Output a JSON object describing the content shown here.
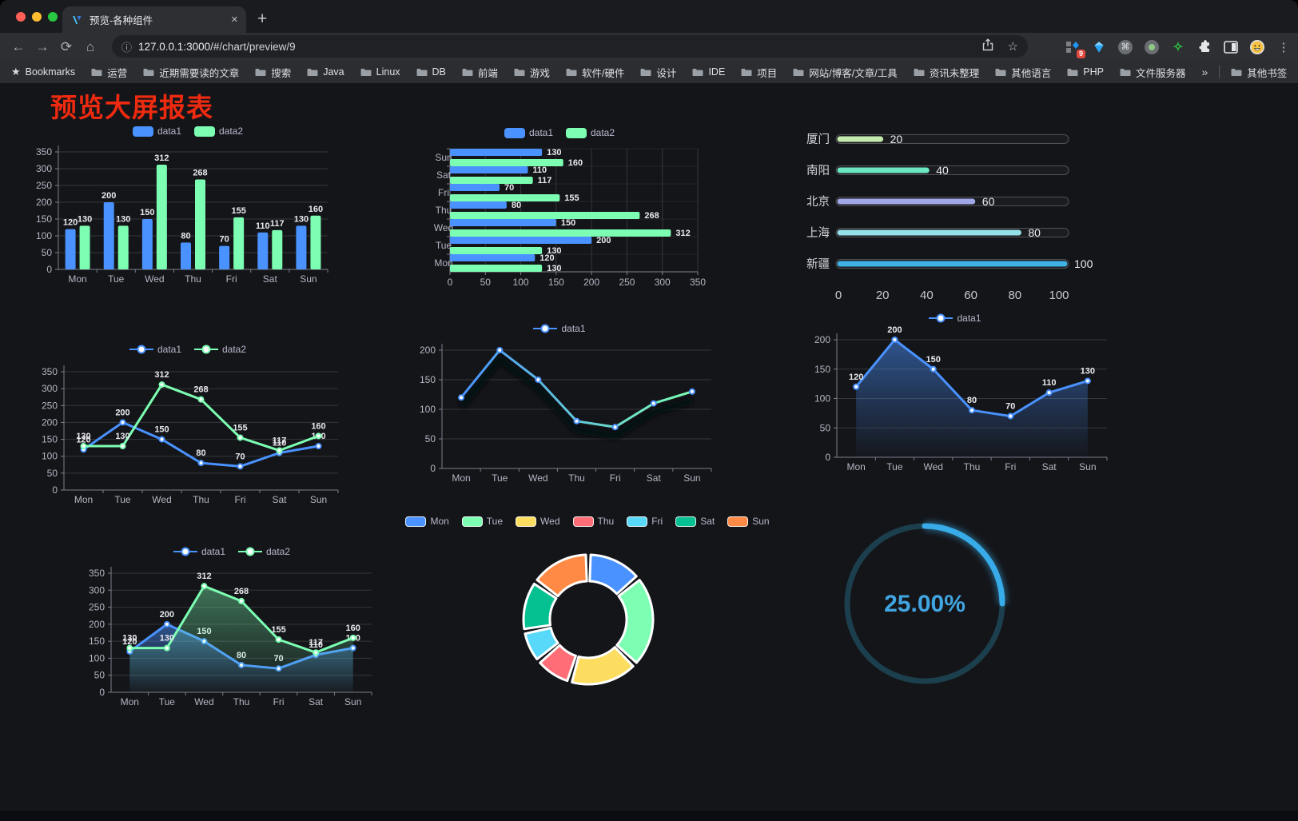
{
  "browser": {
    "tab_title": "预览-各种组件",
    "url_host": "127.0.0.1:3000",
    "url_path": "/#/chart/preview/9",
    "extension_badge": "9",
    "glyphs": {
      "back": "←",
      "forward": "→",
      "reload": "⟳",
      "home": "⌂",
      "info": "ⓘ",
      "star_outline": "☆",
      "bookmarks_star": "★",
      "command": "⌘",
      "green_star": "✧",
      "menu": "⋮",
      "close_tab": "✕",
      "new_tab": "+",
      "overflow": "»"
    },
    "bookmarks_bar": {
      "bookmarks_label": "Bookmarks",
      "folders": [
        "运营",
        "近期需要读的文章",
        "搜索",
        "Java",
        "Linux",
        "DB",
        "前端",
        "游戏",
        "软件/硬件",
        "设计",
        "IDE",
        "项目",
        "网站/博客/文章/工具",
        "资讯未整理",
        "其他语言",
        "PHP",
        "文件服务器"
      ],
      "other_bookmarks": "其他书签"
    }
  },
  "page": {
    "title": "预览大屏报表",
    "title_color": "#ee2a10"
  },
  "chart_data": [
    {
      "id": "grouped-bar",
      "type": "bar",
      "categories": [
        "Mon",
        "Tue",
        "Wed",
        "Thu",
        "Fri",
        "Sat",
        "Sun"
      ],
      "series": [
        {
          "name": "data1",
          "color": "#4992ff",
          "values": [
            120,
            200,
            150,
            80,
            70,
            110,
            130
          ]
        },
        {
          "name": "data2",
          "color": "#7cffb2",
          "values": [
            130,
            130,
            312,
            268,
            155,
            117,
            160
          ]
        }
      ],
      "ylim": [
        0,
        350
      ],
      "ytick_step": 50,
      "legend_position": "top",
      "grid": true,
      "data_labels": true
    },
    {
      "id": "horizontal-bar",
      "type": "bar",
      "orientation": "horizontal",
      "categories": [
        "Mon",
        "Tue",
        "Wed",
        "Thu",
        "Fri",
        "Sat",
        "Sun"
      ],
      "series": [
        {
          "name": "data1",
          "color": "#4992ff",
          "values": [
            120,
            200,
            150,
            80,
            70,
            110,
            130
          ]
        },
        {
          "name": "data2",
          "color": "#7cffb2",
          "values": [
            130,
            130,
            312,
            268,
            155,
            117,
            160
          ]
        }
      ],
      "xlim": [
        0,
        350
      ],
      "xtick_step": 50,
      "legend_position": "top",
      "grid": true,
      "data_labels": true
    },
    {
      "id": "progress-bars",
      "type": "bar",
      "orientation": "horizontal",
      "style": "progress",
      "categories": [
        "厦门",
        "南阳",
        "北京",
        "上海",
        "新疆"
      ],
      "values": [
        20,
        40,
        60,
        80,
        100
      ],
      "colors": [
        "#c4ebad",
        "#6be6c1",
        "#a0a7e6",
        "#96dee8",
        "#3fb1e3"
      ],
      "xlim": [
        0,
        100
      ],
      "xticks": [
        0,
        20,
        40,
        60,
        80,
        100
      ],
      "data_labels": true
    },
    {
      "id": "dual-line",
      "type": "line",
      "categories": [
        "Mon",
        "Tue",
        "Wed",
        "Thu",
        "Fri",
        "Sat",
        "Sun"
      ],
      "series": [
        {
          "name": "data1",
          "color": "#4992ff",
          "values": [
            120,
            200,
            150,
            80,
            70,
            110,
            130
          ]
        },
        {
          "name": "data2",
          "color": "#7cffb2",
          "values": [
            130,
            130,
            312,
            268,
            155,
            117,
            160
          ]
        }
      ],
      "ylim": [
        0,
        350
      ],
      "ytick_step": 50,
      "legend_position": "top",
      "grid": true,
      "data_labels": true
    },
    {
      "id": "gradient-line",
      "type": "line",
      "style": "gradient-shadow",
      "categories": [
        "Mon",
        "Tue",
        "Wed",
        "Thu",
        "Fri",
        "Sat",
        "Sun"
      ],
      "series": [
        {
          "name": "data1",
          "color_start": "#4992ff",
          "color_end": "#7cffb2",
          "values": [
            120,
            200,
            150,
            80,
            70,
            110,
            130
          ]
        }
      ],
      "ylim": [
        0,
        200
      ],
      "ytick_step": 50,
      "legend_position": "top",
      "grid": true,
      "data_labels": false
    },
    {
      "id": "area-line",
      "type": "area",
      "categories": [
        "Mon",
        "Tue",
        "Wed",
        "Thu",
        "Fri",
        "Sat",
        "Sun"
      ],
      "series": [
        {
          "name": "data1",
          "color": "#4992ff",
          "values": [
            120,
            200,
            150,
            80,
            70,
            110,
            130
          ]
        }
      ],
      "ylim": [
        0,
        200
      ],
      "ytick_step": 50,
      "legend_position": "top",
      "grid": true,
      "data_labels": true
    },
    {
      "id": "dual-area",
      "type": "area",
      "categories": [
        "Mon",
        "Tue",
        "Wed",
        "Thu",
        "Fri",
        "Sat",
        "Sun"
      ],
      "series": [
        {
          "name": "data1",
          "color": "#4992ff",
          "values": [
            120,
            200,
            150,
            80,
            70,
            110,
            130
          ]
        },
        {
          "name": "data2",
          "color": "#7cffb2",
          "values": [
            130,
            130,
            312,
            268,
            155,
            117,
            160
          ]
        }
      ],
      "ylim": [
        0,
        350
      ],
      "ytick_step": 50,
      "legend_position": "top",
      "grid": true,
      "data_labels": true
    },
    {
      "id": "donut",
      "type": "pie",
      "legend_position": "top",
      "items": [
        {
          "label": "Mon",
          "value": 120,
          "color": "#4992ff"
        },
        {
          "label": "Tue",
          "value": 200,
          "color": "#7cffb2"
        },
        {
          "label": "Wed",
          "value": 150,
          "color": "#fddd60"
        },
        {
          "label": "Thu",
          "value": 80,
          "color": "#ff6e76"
        },
        {
          "label": "Fri",
          "value": 70,
          "color": "#58d9f9"
        },
        {
          "label": "Sat",
          "value": 110,
          "color": "#05c091"
        },
        {
          "label": "Sun",
          "value": 130,
          "color": "#ff8a45"
        }
      ]
    },
    {
      "id": "gauge",
      "type": "gauge",
      "value": 25,
      "max": 100,
      "label": "25.00%",
      "color": "#38ace8",
      "track_color": "#1c3f4d",
      "text_color": "#41a5e1"
    }
  ]
}
